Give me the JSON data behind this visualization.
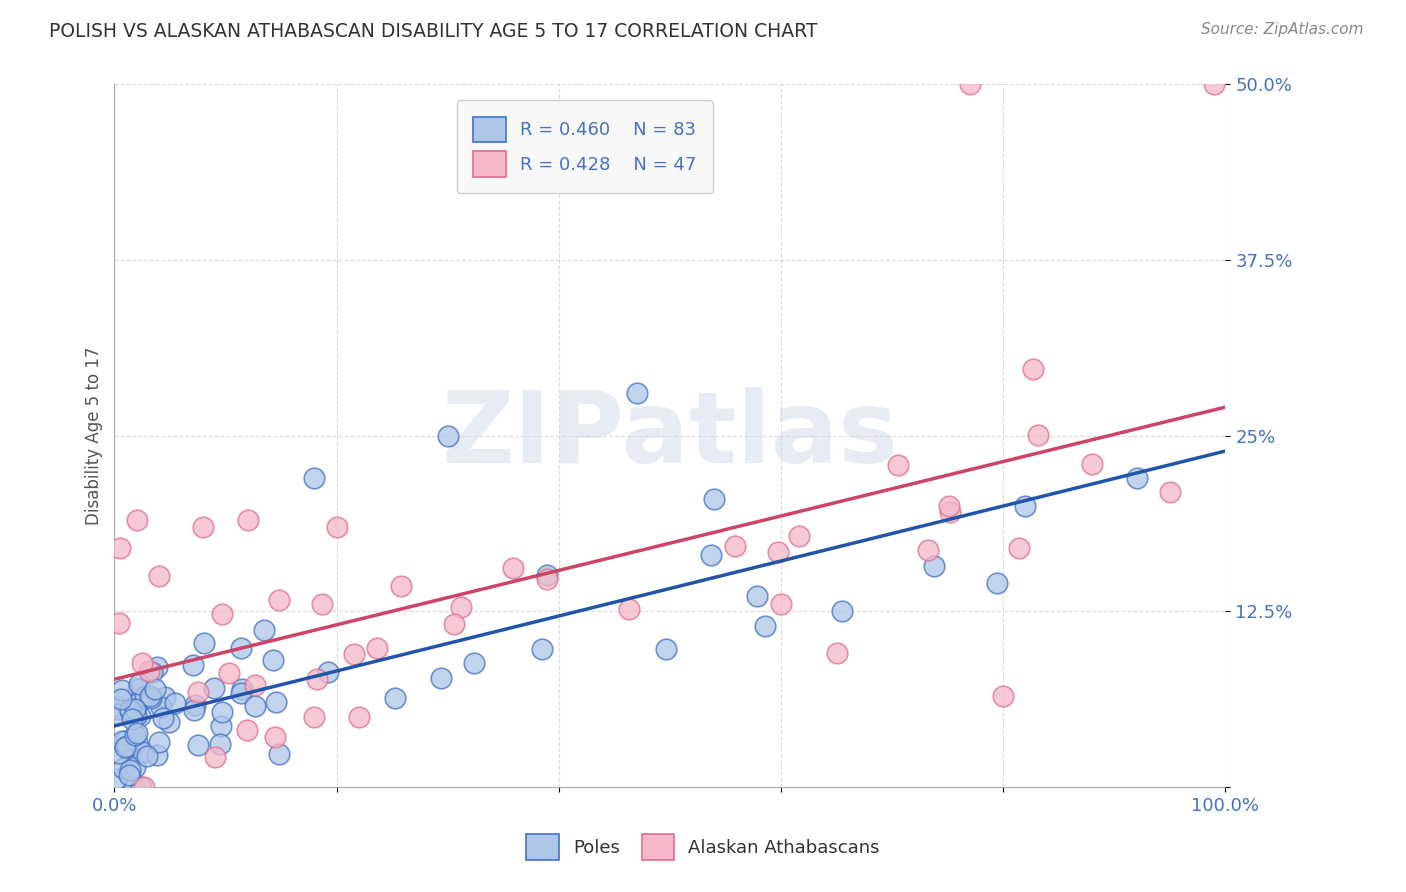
{
  "title": "POLISH VS ALASKAN ATHABASCAN DISABILITY AGE 5 TO 17 CORRELATION CHART",
  "source_text": "Source: ZipAtlas.com",
  "ylabel": "Disability Age 5 to 17",
  "xlim": [
    0,
    1.0
  ],
  "ylim": [
    0,
    0.5
  ],
  "yticks": [
    0,
    0.125,
    0.25,
    0.375,
    0.5
  ],
  "ytick_labels": [
    "",
    "12.5%",
    "25%",
    "37.5%",
    "50.0%"
  ],
  "poles_color": "#aec6e8",
  "poles_edge_color": "#4472c4",
  "athabascan_color": "#f5b8c8",
  "athabascan_edge_color": "#e07090",
  "poles_R": 0.46,
  "poles_N": 83,
  "athabascan_R": 0.428,
  "athabascan_N": 47,
  "trend_poles_color": "#2255aa",
  "trend_athabascan_color": "#cc4466",
  "background_color": "#ffffff",
  "grid_color": "#cccccc",
  "label_color": "#4472c4",
  "watermark": "ZIPatlas"
}
